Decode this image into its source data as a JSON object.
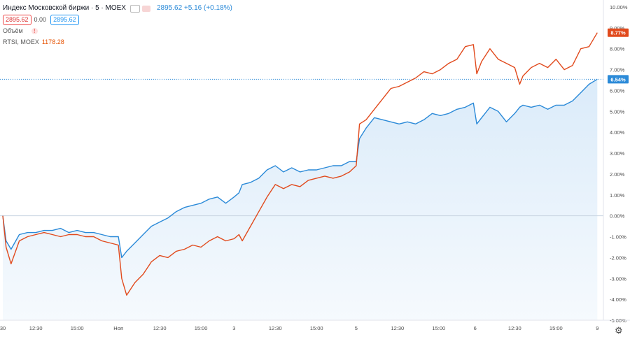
{
  "legend": {
    "title": "Индекс Московской биржи · 5 · MOEX",
    "value_change": "2895.62 +5.16 (+0.18%)",
    "bid": "2895.62",
    "spread": "0.00",
    "ask": "2895.62",
    "volume_label": "Объём",
    "compare_label": "RTSI, MOEX",
    "compare_value": "1178.28"
  },
  "colors": {
    "series_blue": "#2B8AD8",
    "series_red": "#E14A1D",
    "area_fill": "#D9EAF9",
    "grid_zero": "#c7d3e0",
    "axis_text": "#4a4a4a"
  },
  "price_badges": {
    "red": "8.77%",
    "blue": "6.54%"
  },
  "chart_data": {
    "type": "line",
    "title": "Индекс Московской биржи · 5 · MOEX",
    "ylim": [
      -5,
      10
    ],
    "y_ticks": [
      "10.00%",
      "9.00%",
      "8.00%",
      "7.00%",
      "6.00%",
      "5.00%",
      "4.00%",
      "3.00%",
      "2.00%",
      "1.00%",
      "0.00%",
      "-1.00%",
      "-2.00%",
      "-3.00%",
      "-4.00%",
      "-5.00%"
    ],
    "y_tick_values": [
      10,
      9,
      8,
      7,
      6,
      5,
      4,
      3,
      2,
      1,
      0,
      -1,
      -2,
      -3,
      -4,
      -5
    ],
    "x_ticks": [
      "30",
      "12:30",
      "15:00",
      "Ноя",
      "12:30",
      "15:00",
      "3",
      "12:30",
      "15:00",
      "5",
      "12:30",
      "15:00",
      "6",
      "12:30",
      "15:00",
      "9"
    ],
    "x_tick_values": [
      0,
      2,
      4.5,
      7,
      9.5,
      12,
      14,
      16.5,
      19,
      21.4,
      23.9,
      26.4,
      28.6,
      31,
      33.5,
      36
    ],
    "x_range": [
      0,
      36.2
    ],
    "grid": false,
    "zero_line": true,
    "series": [
      {
        "name": "Индекс Московской биржи",
        "color": "#2B8AD8",
        "area": true,
        "x": [
          0,
          0.2,
          0.5,
          1,
          1.5,
          2,
          2.5,
          3,
          3.5,
          4,
          4.5,
          5,
          5.5,
          6,
          6.5,
          7,
          7.2,
          7.5,
          8,
          8.5,
          9,
          9.5,
          10,
          10.5,
          11,
          11.5,
          12,
          12.5,
          13,
          13.5,
          14,
          14.3,
          14.5,
          15,
          15.5,
          16,
          16.5,
          17,
          17.5,
          18,
          18.5,
          19,
          19.5,
          20,
          20.5,
          21,
          21.4,
          21.6,
          22,
          22.5,
          23,
          23.5,
          24,
          24.5,
          25,
          25.5,
          26,
          26.5,
          27,
          27.5,
          28,
          28.5,
          28.7,
          29,
          29.5,
          30,
          30.5,
          31,
          31.3,
          31.5,
          32,
          32.5,
          33,
          33.5,
          34,
          34.5,
          35,
          35.5,
          36
        ],
        "y": [
          0,
          -1.2,
          -1.6,
          -0.9,
          -0.8,
          -0.8,
          -0.7,
          -0.7,
          -0.6,
          -0.8,
          -0.7,
          -0.8,
          -0.8,
          -0.9,
          -1.0,
          -1.0,
          -2.0,
          -1.7,
          -1.3,
          -0.9,
          -0.5,
          -0.3,
          -0.1,
          0.2,
          0.4,
          0.5,
          0.6,
          0.8,
          0.9,
          0.6,
          0.9,
          1.1,
          1.5,
          1.6,
          1.8,
          2.2,
          2.4,
          2.1,
          2.3,
          2.1,
          2.2,
          2.2,
          2.3,
          2.4,
          2.4,
          2.6,
          2.6,
          3.7,
          4.2,
          4.7,
          4.6,
          4.5,
          4.4,
          4.5,
          4.4,
          4.6,
          4.9,
          4.8,
          4.9,
          5.1,
          5.2,
          5.4,
          4.4,
          4.7,
          5.2,
          5.0,
          4.5,
          4.9,
          5.2,
          5.3,
          5.2,
          5.3,
          5.1,
          5.3,
          5.3,
          5.5,
          5.9,
          6.3,
          6.54
        ]
      },
      {
        "name": "RTSI, MOEX",
        "color": "#E14A1D",
        "area": false,
        "x": [
          0,
          0.2,
          0.5,
          1,
          1.5,
          2,
          2.5,
          3,
          3.5,
          4,
          4.5,
          5,
          5.5,
          6,
          6.5,
          7,
          7.2,
          7.5,
          8,
          8.5,
          9,
          9.5,
          10,
          10.5,
          11,
          11.5,
          12,
          12.5,
          13,
          13.5,
          14,
          14.3,
          14.5,
          15,
          15.5,
          16,
          16.5,
          17,
          17.5,
          18,
          18.5,
          19,
          19.5,
          20,
          20.5,
          21,
          21.4,
          21.6,
          22,
          22.5,
          23,
          23.5,
          24,
          24.5,
          25,
          25.5,
          26,
          26.5,
          27,
          27.5,
          28,
          28.5,
          28.7,
          29,
          29.5,
          30,
          30.5,
          31,
          31.3,
          31.5,
          32,
          32.5,
          33,
          33.5,
          34,
          34.5,
          35,
          35.5,
          36
        ],
        "y": [
          0,
          -1.5,
          -2.3,
          -1.2,
          -1.0,
          -0.9,
          -0.8,
          -0.9,
          -1.0,
          -0.9,
          -0.9,
          -1.0,
          -1.0,
          -1.2,
          -1.3,
          -1.4,
          -3.0,
          -3.8,
          -3.2,
          -2.8,
          -2.2,
          -1.9,
          -2.0,
          -1.7,
          -1.6,
          -1.4,
          -1.5,
          -1.2,
          -1.0,
          -1.2,
          -1.1,
          -0.9,
          -1.2,
          -0.5,
          0.2,
          0.9,
          1.5,
          1.3,
          1.5,
          1.4,
          1.7,
          1.8,
          1.9,
          1.8,
          1.9,
          2.1,
          2.4,
          4.4,
          4.6,
          5.1,
          5.6,
          6.1,
          6.2,
          6.4,
          6.6,
          6.9,
          6.8,
          7.0,
          7.3,
          7.5,
          8.1,
          8.2,
          6.8,
          7.4,
          8.0,
          7.5,
          7.3,
          7.1,
          6.3,
          6.7,
          7.1,
          7.3,
          7.1,
          7.5,
          7.0,
          7.2,
          8.0,
          8.1,
          8.77
        ]
      }
    ]
  }
}
